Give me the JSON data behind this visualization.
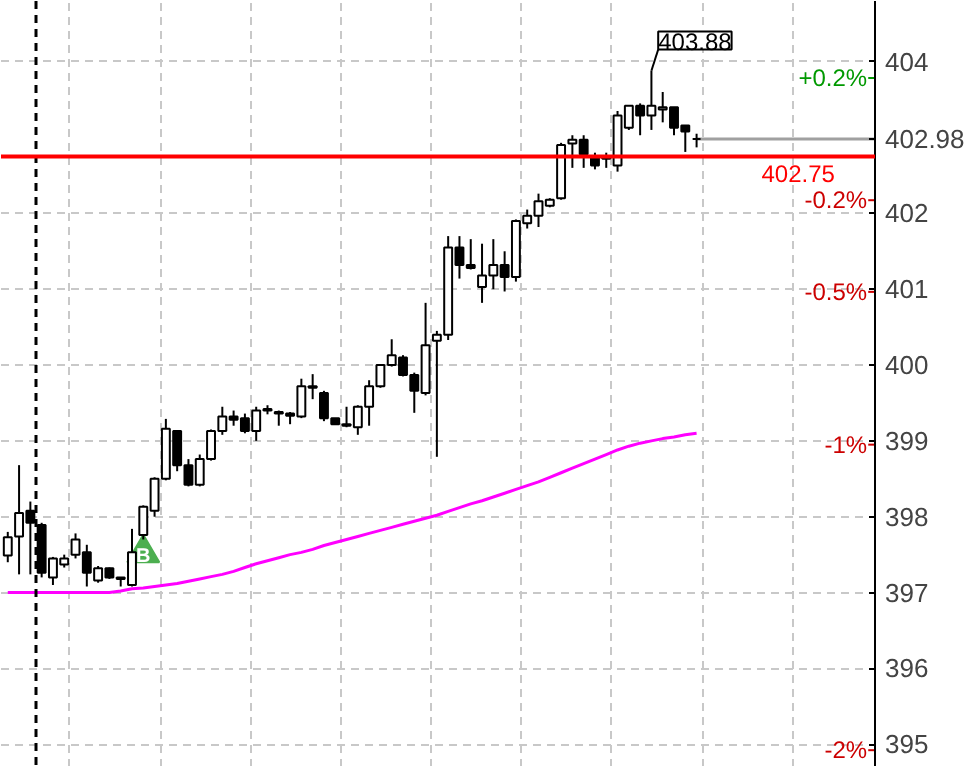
{
  "chart_data": {
    "type": "candlestick",
    "categories": [
      null,
      null,
      null,
      null,
      null,
      null,
      null,
      null,
      null,
      null,
      null,
      null,
      null,
      null,
      null,
      null,
      null,
      null,
      null,
      null,
      null,
      null,
      null,
      null,
      null,
      null,
      null,
      null,
      null,
      null,
      null,
      null,
      null,
      null,
      null,
      null,
      null,
      null,
      null,
      null,
      null,
      null,
      null,
      null,
      null,
      null,
      null,
      null,
      null,
      null,
      null,
      null,
      null,
      null,
      null,
      null,
      null,
      null,
      null,
      null,
      null,
      null
    ],
    "ohlc": [
      [
        397.49,
        397.8,
        397.4,
        397.73
      ],
      [
        397.74,
        398.68,
        397.24,
        398.05
      ],
      [
        398.08,
        398.2,
        397.24,
        397.92
      ],
      [
        397.89,
        397.92,
        397.2,
        397.26
      ],
      [
        397.2,
        397.47,
        397.1,
        397.45
      ],
      [
        397.37,
        397.5,
        397.33,
        397.45
      ],
      [
        397.5,
        397.78,
        397.45,
        397.7
      ],
      [
        397.53,
        397.63,
        397.08,
        397.26
      ],
      [
        397.16,
        397.35,
        397.13,
        397.32
      ],
      [
        397.32,
        397.33,
        397.18,
        397.2
      ],
      [
        397.18,
        397.2,
        397.08,
        397.2
      ],
      [
        397.1,
        397.84,
        397.08,
        397.53
      ],
      [
        397.76,
        398.15,
        397.7,
        398.13
      ],
      [
        398.08,
        398.52,
        398.0,
        398.5
      ],
      [
        398.5,
        399.29,
        398.48,
        399.16
      ],
      [
        399.13,
        399.13,
        398.6,
        398.68
      ],
      [
        398.68,
        398.76,
        398.4,
        398.42
      ],
      [
        398.42,
        398.82,
        398.4,
        398.76
      ],
      [
        398.76,
        399.15,
        398.74,
        399.13
      ],
      [
        399.13,
        399.45,
        399.08,
        399.32
      ],
      [
        399.32,
        399.4,
        399.2,
        399.28
      ],
      [
        399.3,
        399.36,
        399.1,
        399.13
      ],
      [
        399.13,
        399.45,
        399.0,
        399.4
      ],
      [
        399.4,
        399.47,
        399.35,
        399.42
      ],
      [
        399.38,
        399.4,
        399.2,
        399.36
      ],
      [
        399.36,
        399.38,
        399.22,
        399.33
      ],
      [
        399.32,
        399.82,
        399.3,
        399.72
      ],
      [
        399.72,
        399.88,
        399.55,
        399.7
      ],
      [
        399.63,
        399.66,
        399.26,
        399.3
      ],
      [
        399.3,
        399.3,
        399.22,
        399.22
      ],
      [
        399.2,
        399.45,
        399.18,
        399.22
      ],
      [
        399.18,
        399.47,
        399.08,
        399.45
      ],
      [
        399.45,
        399.8,
        399.2,
        399.72
      ],
      [
        399.72,
        400.0,
        399.7,
        400.0
      ],
      [
        400.0,
        400.34,
        399.98,
        400.13
      ],
      [
        400.1,
        400.13,
        399.85,
        399.87
      ],
      [
        399.87,
        399.9,
        399.37,
        399.66
      ],
      [
        399.63,
        400.82,
        399.6,
        400.26
      ],
      [
        400.32,
        400.45,
        398.79,
        400.4
      ],
      [
        400.4,
        401.7,
        400.33,
        401.55
      ],
      [
        401.55,
        401.7,
        401.14,
        401.32
      ],
      [
        401.32,
        401.66,
        401.26,
        401.28
      ],
      [
        401.03,
        401.6,
        400.82,
        401.18
      ],
      [
        401.18,
        401.66,
        401.0,
        401.32
      ],
      [
        401.32,
        401.5,
        400.97,
        401.16
      ],
      [
        401.16,
        401.92,
        401.1,
        401.9
      ],
      [
        401.87,
        402.05,
        401.8,
        401.97
      ],
      [
        401.97,
        402.26,
        401.82,
        402.16
      ],
      [
        402.1,
        402.2,
        402.08,
        402.18
      ],
      [
        402.2,
        402.93,
        402.18,
        402.9
      ],
      [
        402.92,
        403.03,
        402.6,
        402.97
      ],
      [
        402.97,
        403.03,
        402.6,
        402.78
      ],
      [
        402.74,
        402.8,
        402.58,
        402.63
      ],
      [
        402.72,
        402.8,
        402.6,
        402.74
      ],
      [
        402.63,
        403.35,
        402.55,
        403.29
      ],
      [
        403.13,
        403.42,
        403.1,
        403.42
      ],
      [
        403.42,
        403.45,
        403.03,
        403.29
      ],
      [
        403.29,
        403.88,
        403.1,
        403.42
      ],
      [
        403.37,
        403.6,
        403.2,
        403.4
      ],
      [
        403.4,
        403.4,
        403.03,
        403.13
      ],
      [
        403.16,
        403.16,
        402.81,
        403.08
      ],
      [
        402.98,
        403.05,
        402.87,
        402.98
      ]
    ],
    "series": [
      {
        "type": "line",
        "color": "#ff00ff",
        "values": [
          397.0,
          397.0,
          397.0,
          397.0,
          397.0,
          397.0,
          397.0,
          397.0,
          397.0,
          397.0,
          397.02,
          397.05,
          397.06,
          397.08,
          397.1,
          397.12,
          397.15,
          397.18,
          397.21,
          397.24,
          397.28,
          397.33,
          397.38,
          397.42,
          397.46,
          397.5,
          397.53,
          397.57,
          397.62,
          397.66,
          397.7,
          397.74,
          397.78,
          397.82,
          397.86,
          397.9,
          397.94,
          397.98,
          398.02,
          398.07,
          398.12,
          398.17,
          398.21,
          398.26,
          398.31,
          398.36,
          398.41,
          398.46,
          398.52,
          398.58,
          398.64,
          398.7,
          398.76,
          398.82,
          398.88,
          398.93,
          398.97,
          399.0,
          399.03,
          399.05,
          399.08,
          399.1
        ]
      },
      {
        "type": "scatter",
        "name": "B",
        "marker": "triangle",
        "color": "#4caf50",
        "values": [
          null,
          null,
          null,
          null,
          null,
          null,
          null,
          null,
          null,
          null,
          null,
          null,
          397.52,
          null,
          null,
          null,
          null,
          null,
          null,
          null,
          null,
          null,
          null,
          null,
          null,
          null,
          null,
          null,
          null,
          null,
          null,
          null,
          null,
          null,
          null,
          null,
          null,
          null,
          null,
          null,
          null,
          null,
          null,
          null,
          null,
          null,
          null,
          null,
          null,
          null,
          null,
          null,
          null,
          null,
          null,
          null,
          null,
          null,
          null,
          null,
          null,
          null
        ]
      }
    ],
    "ylim": [
      394.7,
      404.8
    ],
    "yticks": [
      395,
      396,
      397,
      398,
      399,
      400,
      401,
      402,
      404
    ],
    "grid": true,
    "tick_labels": "y",
    "ref_lines": [
      {
        "axis": "y",
        "value": 402.75,
        "label": "402.75",
        "color": "#ff0000"
      },
      {
        "axis": "y",
        "value": 402.98,
        "label": "402.98",
        "color": "#a0a0a0"
      }
    ],
    "y2lim": [
      -2.055,
      0.452
    ],
    "y2ticks": [
      {
        "value": 0.2,
        "label": "+0.2%"
      },
      {
        "value": -0.2,
        "label": "-0.2%"
      },
      {
        "value": -0.5,
        "label": "-0.5%"
      },
      {
        "value": -1,
        "label": "-1%"
      },
      {
        "value": -2,
        "label": "-2%"
      }
    ],
    "annotations": [
      "403.88"
    ]
  }
}
